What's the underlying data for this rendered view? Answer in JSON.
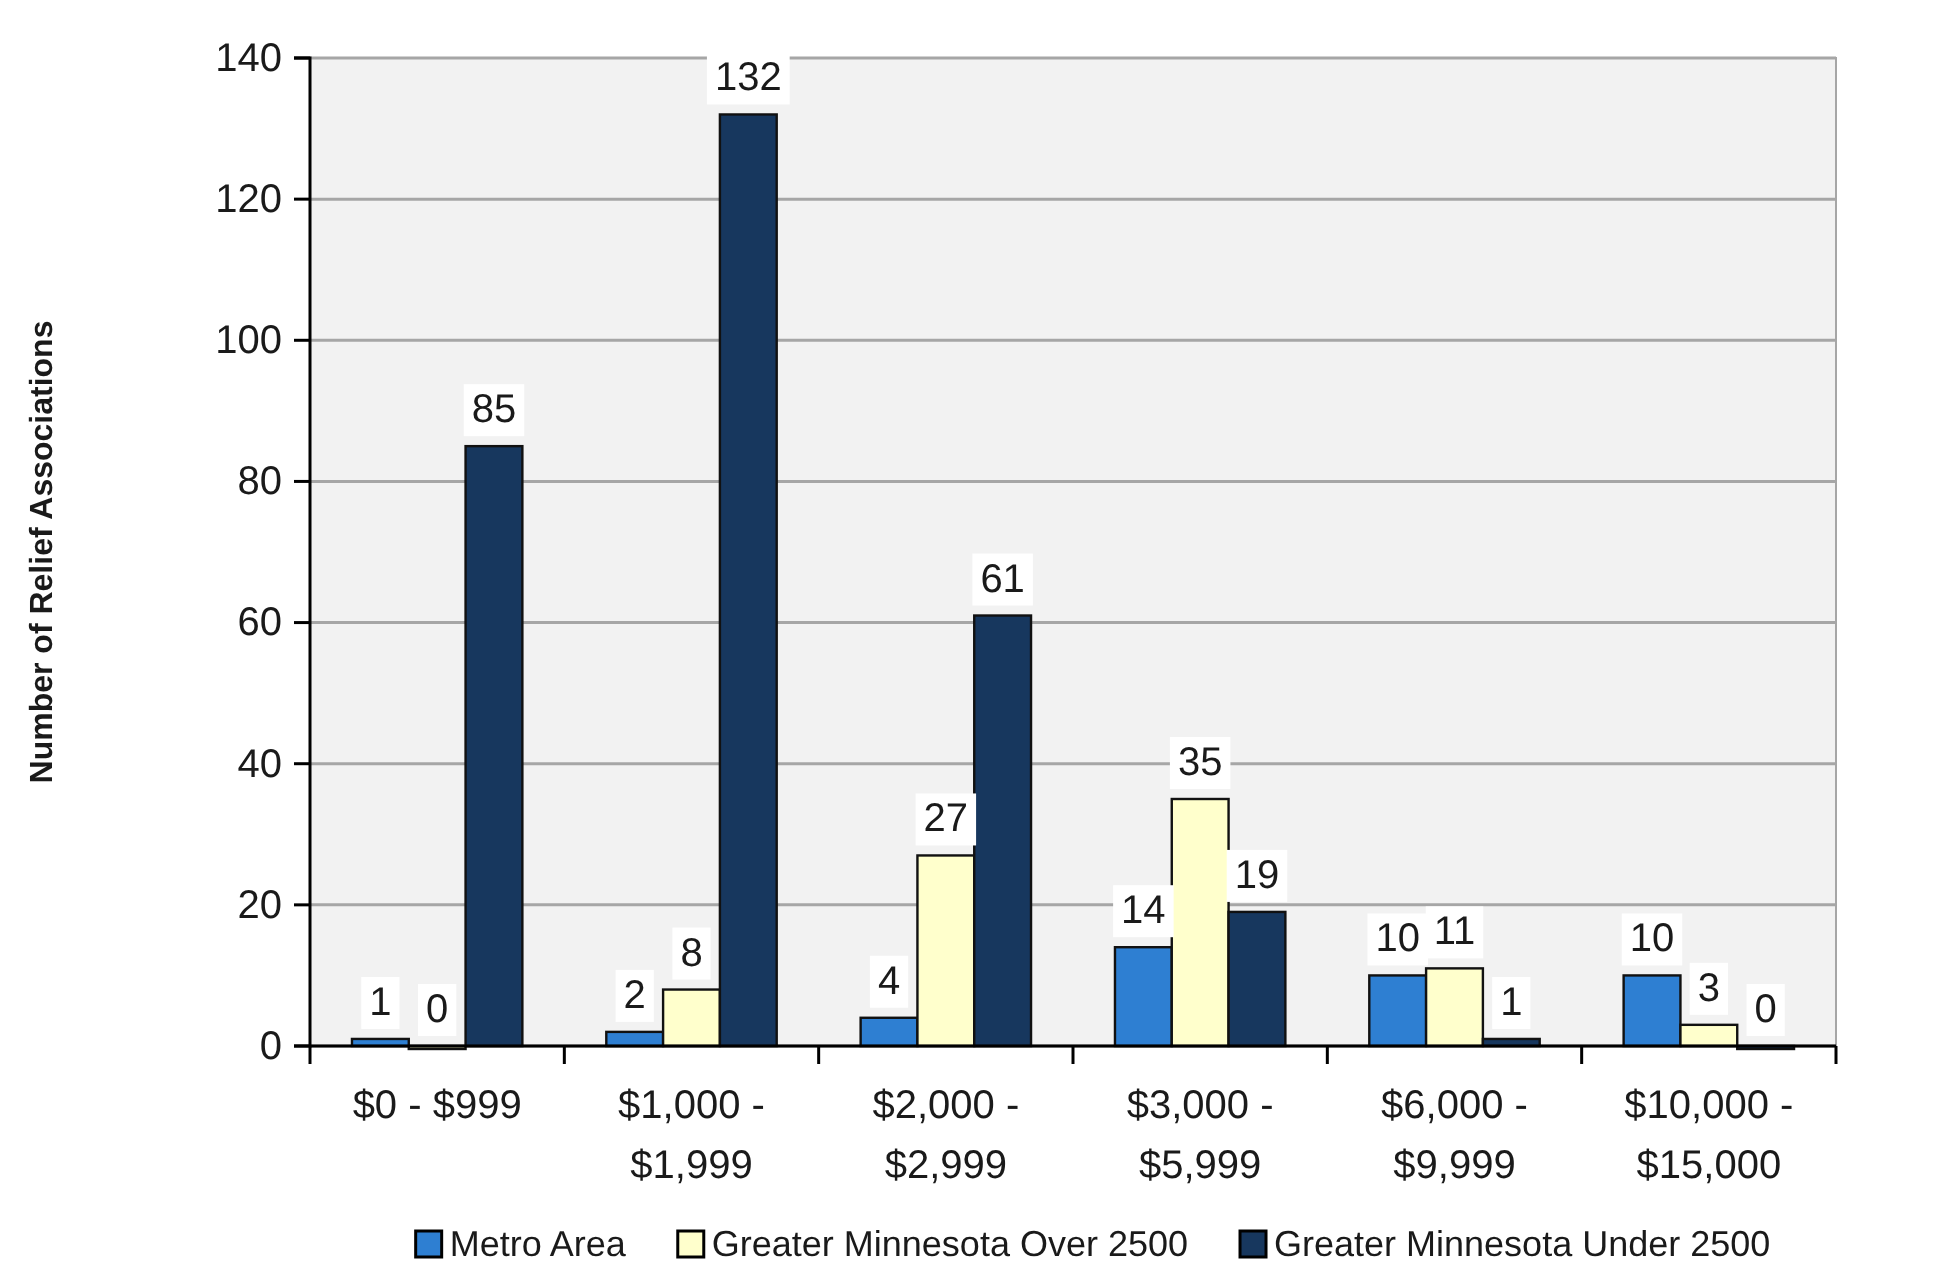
{
  "chart_data": {
    "type": "bar",
    "ylabel": "Number of Relief Associations",
    "categories": [
      "$0 - $999",
      "$1,000 - $1,999",
      "$2,000 - $2,999",
      "$3,000 - $5,999",
      "$6,000 - $9,999",
      "$10,000 - $15,000"
    ],
    "series": [
      {
        "name": "Metro Area",
        "color": "#2e7fd2",
        "values": [
          1,
          2,
          4,
          14,
          10,
          10
        ]
      },
      {
        "name": "Greater Minnesota Over 2500",
        "color": "#ffffcc",
        "values": [
          0,
          8,
          27,
          35,
          11,
          3
        ]
      },
      {
        "name": "Greater Minnesota Under 2500",
        "color": "#17375e",
        "values": [
          85,
          132,
          61,
          19,
          1,
          0
        ]
      }
    ],
    "ylim": [
      0,
      140
    ],
    "yticks": [
      0,
      20,
      40,
      60,
      80,
      100,
      120,
      140
    ],
    "grid": "y",
    "legend": "bottom",
    "data_labels": true
  }
}
